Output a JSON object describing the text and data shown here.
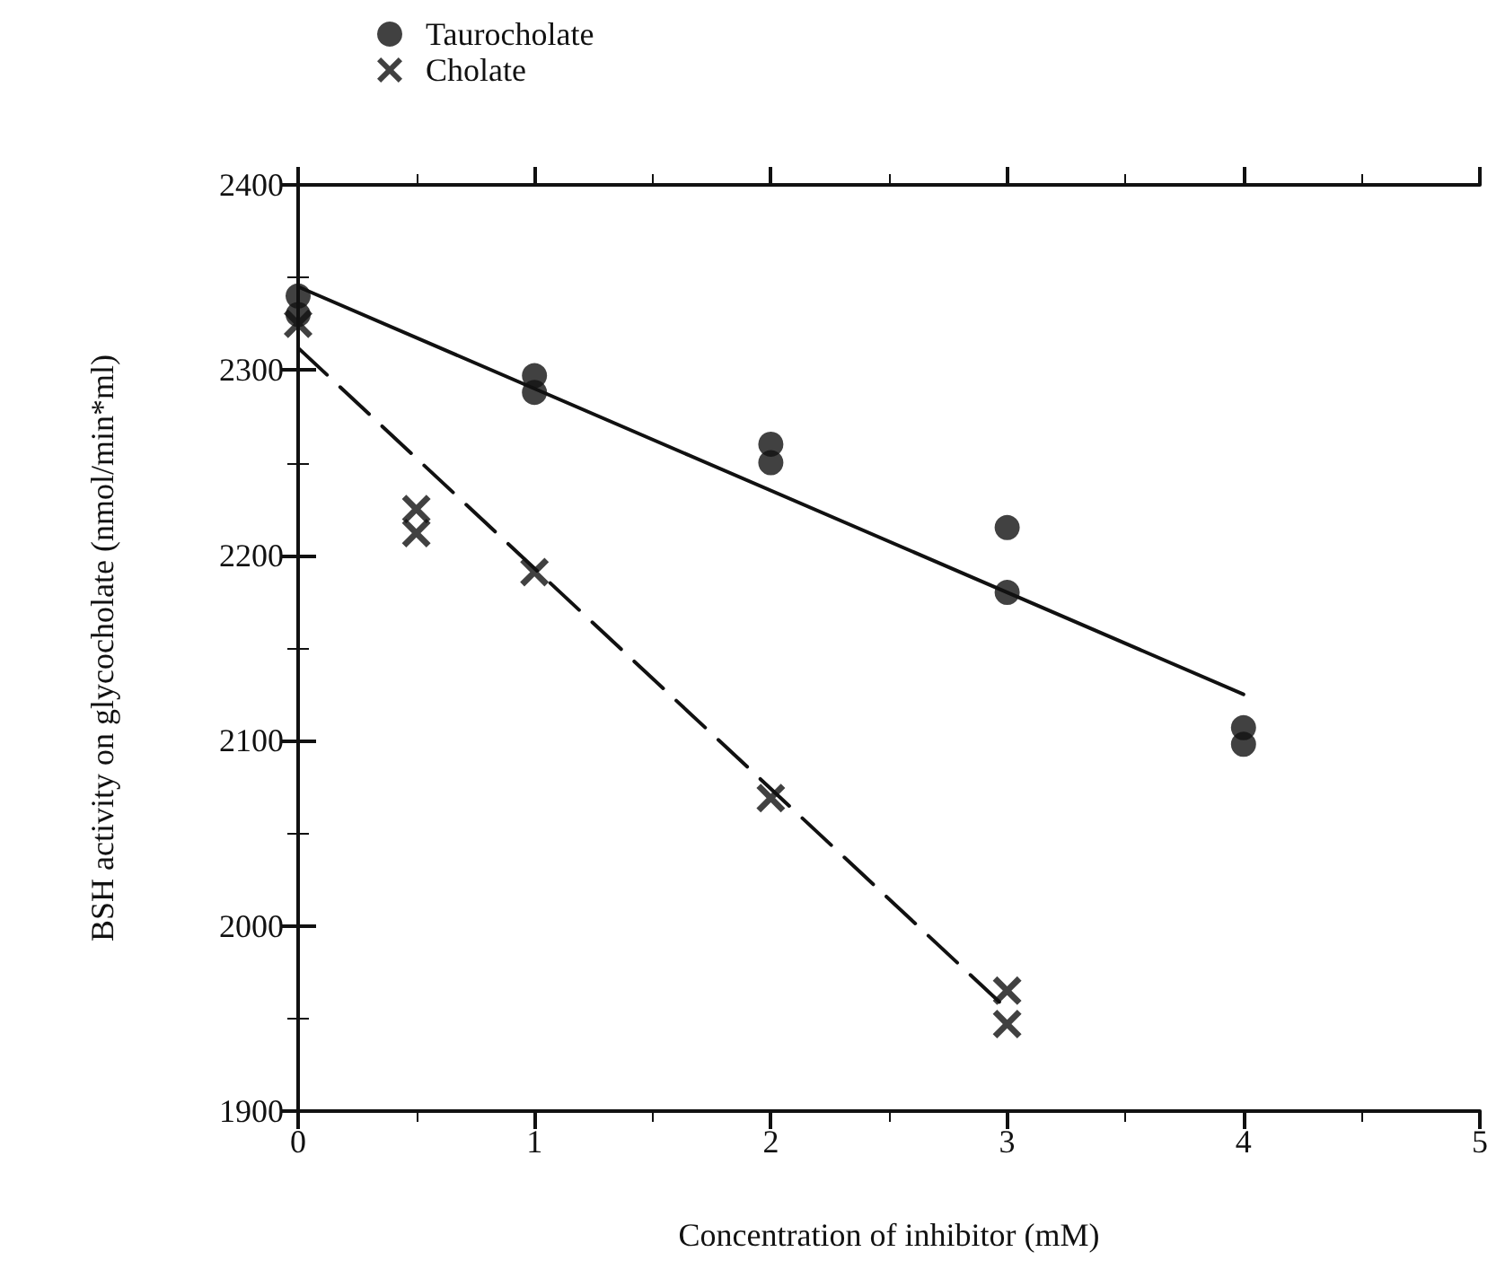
{
  "chart_data": {
    "type": "scatter",
    "xlabel": "Concentration of inhibitor (mM)",
    "ylabel": "BSH activity on glycocholate (nmol/min*ml)",
    "xlim": [
      0,
      5
    ],
    "xticks": [
      0,
      1,
      2,
      3,
      4,
      5
    ],
    "ylim": [
      1900,
      2400
    ],
    "yticks": [
      1900,
      2000,
      2100,
      2200,
      2300,
      2400
    ],
    "grid": false,
    "legend": "top left",
    "series": [
      {
        "name": "Taurocholate",
        "marker": "circle",
        "color": "#111111",
        "x": [
          0,
          0,
          1,
          1,
          2,
          2,
          3,
          3,
          4,
          4
        ],
        "values": [
          2340,
          2330,
          2297,
          2288,
          2260,
          2250,
          2215,
          2180,
          2107,
          2098
        ]
      },
      {
        "name": "Cholate",
        "marker": "cross",
        "color": "#111111",
        "x": [
          0,
          0.5,
          0.5,
          1,
          2,
          3,
          3
        ],
        "values": [
          2325,
          2225,
          2212,
          2191,
          2069,
          1965,
          1947
        ]
      },
      {
        "type": "line",
        "marker": "none",
        "line_style": "solid",
        "color": "#111111",
        "x": [
          0,
          4
        ],
        "values": [
          2345,
          2125
        ]
      },
      {
        "type": "line",
        "marker": "none",
        "line_style": "dashed",
        "color": "#111111",
        "x": [
          0,
          3
        ],
        "values": [
          2312,
          1955
        ]
      }
    ]
  }
}
